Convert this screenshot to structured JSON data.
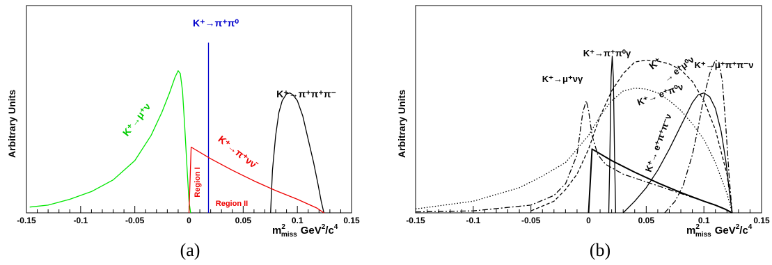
{
  "panel_labels": [
    "(a)",
    "(b)"
  ],
  "chart_data": [
    {
      "type": "line",
      "panel": "(a)",
      "ylabel": "Arbitrary Units",
      "xlabel_main": "m",
      "xlabel_sup": "2",
      "xlabel_sub": "miss",
      "xlabel_unit": "GeV",
      "xlabel_unit_sup1": "2",
      "xlabel_unit_mid": "/c",
      "xlabel_unit_sup2": "4",
      "xlim": [
        -0.15,
        0.15
      ],
      "xticks": [
        -0.15,
        -0.1,
        -0.05,
        0,
        0.05,
        0.1,
        0.15
      ],
      "xtick_labels": [
        "-0.15",
        "-0.1",
        "-0.05",
        "0",
        "0.05",
        "0.1",
        "0.15"
      ],
      "ylim": [
        0,
        1
      ],
      "series": [
        {
          "name": "K⁺→μ⁺ν",
          "color": "#00e600",
          "stroke": "solid",
          "x": [
            -0.147,
            -0.13,
            -0.11,
            -0.09,
            -0.07,
            -0.05,
            -0.035,
            -0.025,
            -0.018,
            -0.013,
            -0.01,
            -0.008,
            -0.006,
            -0.004,
            -0.002,
            0.0,
            0.0015
          ],
          "y": [
            0.03,
            0.04,
            0.07,
            0.11,
            0.17,
            0.27,
            0.4,
            0.52,
            0.62,
            0.7,
            0.735,
            0.72,
            0.63,
            0.45,
            0.25,
            0.06,
            0.0
          ]
        },
        {
          "name": "K⁺→π⁺π⁰",
          "color": "#0000cc",
          "stroke": "solid",
          "x": [
            0.018,
            0.018
          ],
          "y": [
            0.0,
            0.88
          ]
        },
        {
          "name": "K⁺→π⁺π⁺π⁻",
          "color": "#000000",
          "stroke": "solid",
          "x": [
            0.0753,
            0.077,
            0.08,
            0.083,
            0.086,
            0.09,
            0.093,
            0.096,
            0.1,
            0.105,
            0.11,
            0.115,
            0.119,
            0.122,
            0.1245
          ],
          "y": [
            0.0,
            0.22,
            0.4,
            0.52,
            0.58,
            0.615,
            0.62,
            0.61,
            0.58,
            0.5,
            0.38,
            0.26,
            0.15,
            0.06,
            0.0
          ]
        },
        {
          "name": "K⁺→π⁺νν̄",
          "color": "#ee0000",
          "stroke": "solid",
          "x": [
            0.0,
            0.002,
            0.02,
            0.04,
            0.06,
            0.08,
            0.1,
            0.11,
            0.118,
            0.1245
          ],
          "y": [
            0.0,
            0.34,
            0.28,
            0.22,
            0.165,
            0.115,
            0.07,
            0.045,
            0.025,
            0.0
          ]
        }
      ],
      "annotations": {
        "top_label": "K⁺→π⁺π⁰",
        "right_label": "K⁺→π⁺π⁺π⁻",
        "green_label": "K⁺→μ⁺ν",
        "red_label": "K⁺→π⁺νν̄",
        "region1": "Region I",
        "region2": "Region II"
      }
    },
    {
      "type": "line",
      "panel": "(b)",
      "ylabel": "Arbitrary Units",
      "xlabel_main": "m",
      "xlabel_sup": "2",
      "xlabel_sub": "miss",
      "xlabel_unit": "GeV",
      "xlabel_unit_sup1": "2",
      "xlabel_unit_mid": "/c",
      "xlabel_unit_sup2": "4",
      "xlim": [
        -0.15,
        0.15
      ],
      "xticks": [
        -0.15,
        -0.1,
        -0.05,
        0,
        0.05,
        0.1,
        0.15
      ],
      "xtick_labels": [
        "-0.15",
        "-0.1",
        "-0.05",
        "0",
        "0.05",
        "0.1",
        "0.15"
      ],
      "ylim": [
        0,
        1
      ],
      "series": [
        {
          "name": "K⁺→π⁺νν̄",
          "color": "#000000",
          "stroke": "thick",
          "x": [
            0.0,
            0.003,
            0.02,
            0.04,
            0.06,
            0.08,
            0.1,
            0.11,
            0.118,
            0.1245
          ],
          "y": [
            0.0,
            0.33,
            0.27,
            0.21,
            0.155,
            0.105,
            0.06,
            0.04,
            0.02,
            0.0
          ]
        },
        {
          "name": "K⁺→π⁺π⁰γ",
          "color": "#000000",
          "stroke": "solid",
          "x": [
            0.0175,
            0.0185,
            0.0195,
            0.0205,
            0.0215,
            0.0225,
            0.0235
          ],
          "y": [
            0.0,
            0.3,
            0.7,
            0.81,
            0.7,
            0.3,
            0.0
          ]
        },
        {
          "name": "K⁺→μ⁺νγ",
          "color": "#000000",
          "stroke": "dashdot",
          "x": [
            -0.15,
            -0.1,
            -0.05,
            -0.03,
            -0.02,
            -0.01,
            -0.005,
            -0.002,
            0.0,
            0.003,
            0.008,
            0.015,
            0.03,
            0.05,
            0.07,
            0.09,
            0.11,
            0.12,
            0.1245
          ],
          "y": [
            0.005,
            0.01,
            0.04,
            0.09,
            0.15,
            0.3,
            0.52,
            0.58,
            0.53,
            0.4,
            0.3,
            0.25,
            0.2,
            0.16,
            0.12,
            0.08,
            0.04,
            0.015,
            0.0
          ]
        },
        {
          "name": "K⁺→e⁺μ⁰ν",
          "color": "#000000",
          "stroke": "dashed",
          "x": [
            -0.05,
            -0.03,
            -0.02,
            -0.01,
            0.0,
            0.01,
            0.02,
            0.03,
            0.04,
            0.05,
            0.06,
            0.07,
            0.08,
            0.09,
            0.1,
            0.11,
            0.12,
            0.1245
          ],
          "y": [
            0.01,
            0.06,
            0.12,
            0.2,
            0.33,
            0.5,
            0.63,
            0.72,
            0.78,
            0.79,
            0.785,
            0.77,
            0.74,
            0.68,
            0.58,
            0.43,
            0.2,
            0.0
          ]
        },
        {
          "name": "K⁺→e⁺π⁰ν",
          "color": "#000000",
          "stroke": "dotted",
          "x": [
            -0.15,
            -0.1,
            -0.06,
            -0.04,
            -0.02,
            -0.01,
            0.0,
            0.01,
            0.02,
            0.03,
            0.04,
            0.05,
            0.06,
            0.07,
            0.08,
            0.09,
            0.1,
            0.11,
            0.12,
            0.1245
          ],
          "y": [
            0.02,
            0.06,
            0.13,
            0.19,
            0.26,
            0.33,
            0.4,
            0.5,
            0.58,
            0.63,
            0.645,
            0.64,
            0.62,
            0.58,
            0.53,
            0.46,
            0.38,
            0.26,
            0.1,
            0.0
          ]
        },
        {
          "name": "K⁺→μ⁺π⁺π⁻ν",
          "color": "#000000",
          "stroke": "dashdot",
          "x": [
            0.066,
            0.075,
            0.082,
            0.09,
            0.095,
            0.1,
            0.105,
            0.11,
            0.113,
            0.116,
            0.119,
            0.122,
            0.1245
          ],
          "y": [
            0.0,
            0.06,
            0.14,
            0.3,
            0.44,
            0.6,
            0.72,
            0.79,
            0.78,
            0.68,
            0.45,
            0.18,
            0.0
          ]
        },
        {
          "name": "K⁺→e⁺π⁺π⁻ν",
          "color": "#000000",
          "stroke": "solid",
          "x": [
            0.03,
            0.04,
            0.05,
            0.06,
            0.07,
            0.08,
            0.09,
            0.095,
            0.1,
            0.105,
            0.11,
            0.115,
            0.119,
            0.122,
            0.1245
          ],
          "y": [
            0.0,
            0.06,
            0.13,
            0.22,
            0.33,
            0.45,
            0.57,
            0.61,
            0.62,
            0.6,
            0.54,
            0.42,
            0.27,
            0.12,
            0.0
          ]
        }
      ],
      "annotations": {
        "pi0g_label": "K⁺→π⁺π⁰γ",
        "mung_label": "K⁺→μ⁺νγ",
        "mupipi_label": "K⁺→μ⁺π⁺π⁻ν",
        "emu_label_k": "K⁺",
        "emu_label_rest": "→ e⁺μ⁰ν",
        "epi0_label": "K⁺→ e⁺π⁰ν",
        "epipi_label": "K⁺→ e⁺π⁺π⁻ν"
      }
    }
  ]
}
